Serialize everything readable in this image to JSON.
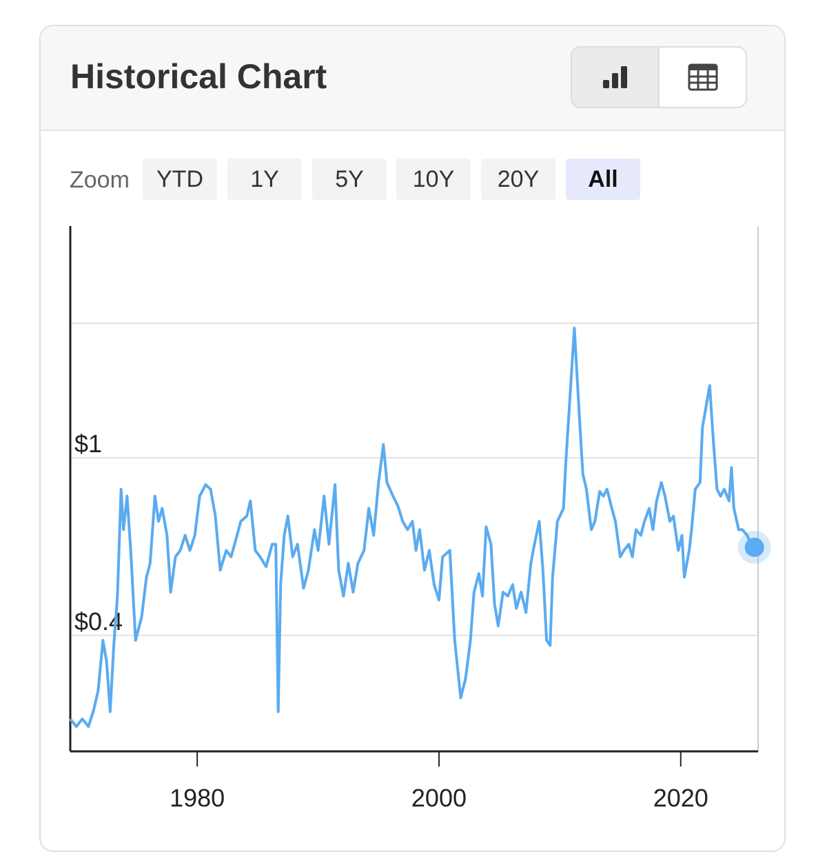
{
  "header": {
    "title": "Historical Chart"
  },
  "zoom": {
    "label": "Zoom",
    "options": [
      "YTD",
      "1Y",
      "5Y",
      "10Y",
      "20Y",
      "All"
    ],
    "selected_index": 5
  },
  "chart_data": {
    "type": "line",
    "log_scale": true,
    "grid": true,
    "color": "#5aabf0",
    "xlim": [
      1969.5,
      2026.4
    ],
    "xticks": [
      1980,
      2000,
      2020
    ],
    "ylim": [
      0.22,
      3.3
    ],
    "yticks": [
      {
        "value": 0.4,
        "label": "$0.4"
      },
      {
        "value": 1,
        "label": "$1"
      },
      {
        "value": 2,
        "label": null
      }
    ],
    "x": [
      1969.5,
      1970.0,
      1970.5,
      1971.0,
      1971.4,
      1971.8,
      1972.2,
      1972.5,
      1972.8,
      1973.1,
      1973.4,
      1973.7,
      1973.9,
      1974.2,
      1974.5,
      1974.9,
      1975.4,
      1975.8,
      1976.1,
      1976.5,
      1976.8,
      1977.1,
      1977.5,
      1977.8,
      1978.2,
      1978.6,
      1979.0,
      1979.4,
      1979.8,
      1980.2,
      1980.7,
      1981.1,
      1981.5,
      1981.9,
      1982.4,
      1982.8,
      1983.3,
      1983.6,
      1984.1,
      1984.4,
      1984.8,
      1985.2,
      1985.7,
      1986.2,
      1986.5,
      1986.7,
      1986.9,
      1987.2,
      1987.5,
      1987.9,
      1988.3,
      1988.8,
      1989.2,
      1989.7,
      1990.0,
      1990.5,
      1990.9,
      1991.4,
      1991.7,
      1992.1,
      1992.5,
      1992.9,
      1993.3,
      1993.8,
      1994.2,
      1994.6,
      1995.0,
      1995.4,
      1995.7,
      1996.2,
      1996.6,
      1997.0,
      1997.4,
      1997.8,
      1998.1,
      1998.4,
      1998.8,
      1999.2,
      1999.6,
      2000.0,
      2000.3,
      2000.9,
      2001.3,
      2001.8,
      2002.2,
      2002.6,
      2002.9,
      2003.3,
      2003.6,
      2003.9,
      2004.3,
      2004.6,
      2004.9,
      2005.3,
      2005.7,
      2006.1,
      2006.4,
      2006.8,
      2007.2,
      2007.6,
      2007.9,
      2008.3,
      2008.6,
      2008.9,
      2009.2,
      2009.4,
      2009.8,
      2010.3,
      2010.5,
      2010.9,
      2011.2,
      2011.6,
      2011.9,
      2012.2,
      2012.6,
      2012.9,
      2013.3,
      2013.6,
      2013.9,
      2014.3,
      2014.6,
      2015.0,
      2015.3,
      2015.7,
      2016.0,
      2016.3,
      2016.7,
      2017.0,
      2017.4,
      2017.7,
      2018.0,
      2018.4,
      2018.7,
      2019.1,
      2019.4,
      2019.8,
      2020.1,
      2020.3,
      2020.7,
      2020.9,
      2021.2,
      2021.6,
      2021.8,
      2022.2,
      2022.4,
      2022.7,
      2023.0,
      2023.3,
      2023.6,
      2024.0,
      2024.2,
      2024.4,
      2024.8,
      2025.1,
      2025.5,
      2025.8,
      2026.1
    ],
    "values": [
      0.26,
      0.25,
      0.26,
      0.25,
      0.27,
      0.3,
      0.39,
      0.35,
      0.27,
      0.38,
      0.49,
      0.85,
      0.69,
      0.82,
      0.62,
      0.39,
      0.44,
      0.54,
      0.58,
      0.82,
      0.72,
      0.77,
      0.67,
      0.5,
      0.6,
      0.62,
      0.67,
      0.62,
      0.67,
      0.82,
      0.87,
      0.85,
      0.74,
      0.56,
      0.62,
      0.6,
      0.67,
      0.72,
      0.74,
      0.8,
      0.62,
      0.6,
      0.57,
      0.64,
      0.64,
      0.27,
      0.52,
      0.67,
      0.74,
      0.6,
      0.64,
      0.51,
      0.56,
      0.69,
      0.62,
      0.82,
      0.64,
      0.87,
      0.56,
      0.49,
      0.58,
      0.5,
      0.58,
      0.62,
      0.77,
      0.67,
      0.88,
      1.07,
      0.88,
      0.82,
      0.78,
      0.72,
      0.69,
      0.72,
      0.62,
      0.69,
      0.56,
      0.62,
      0.52,
      0.48,
      0.6,
      0.62,
      0.39,
      0.29,
      0.32,
      0.39,
      0.5,
      0.55,
      0.49,
      0.7,
      0.64,
      0.47,
      0.42,
      0.5,
      0.49,
      0.52,
      0.46,
      0.5,
      0.45,
      0.58,
      0.64,
      0.72,
      0.56,
      0.39,
      0.38,
      0.54,
      0.72,
      0.77,
      0.98,
      1.45,
      1.95,
      1.26,
      0.92,
      0.85,
      0.69,
      0.72,
      0.84,
      0.82,
      0.85,
      0.77,
      0.72,
      0.6,
      0.62,
      0.64,
      0.6,
      0.69,
      0.67,
      0.72,
      0.77,
      0.69,
      0.8,
      0.88,
      0.82,
      0.72,
      0.74,
      0.62,
      0.67,
      0.54,
      0.62,
      0.69,
      0.85,
      0.88,
      1.17,
      1.35,
      1.45,
      1.09,
      0.85,
      0.82,
      0.85,
      0.8,
      0.95,
      0.77,
      0.69,
      0.69,
      0.67,
      0.64,
      0.63
    ]
  }
}
